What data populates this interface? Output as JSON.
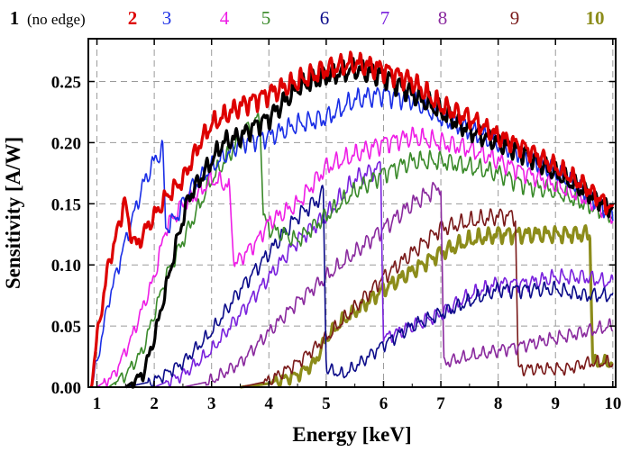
{
  "chart_data": {
    "type": "line",
    "xlabel": "Energy [keV]",
    "ylabel": "Sensitivity [A/W]",
    "xlim": [
      0.85,
      10.05
    ],
    "ylim": [
      0.0,
      0.285
    ],
    "x_ticks": [
      "1",
      "2",
      "3",
      "4",
      "5",
      "6",
      "7",
      "8",
      "9",
      "10"
    ],
    "y_ticks": [
      "0.00",
      "0.05",
      "0.10",
      "0.15",
      "0.20",
      "0.25"
    ],
    "grid": true,
    "legend_placement": "top",
    "series": [
      {
        "name": "1",
        "note": "(no edge)",
        "color": "#000000",
        "bold": true,
        "width": 3.2,
        "x": [
          1.5,
          1.8,
          2.0,
          2.2,
          2.4,
          2.6,
          2.8,
          3.0,
          3.2,
          3.5,
          3.8,
          4.0,
          4.5,
          5.0,
          5.5,
          6.0,
          6.5,
          7.0,
          7.5,
          8.0,
          8.5,
          9.0,
          9.5,
          10.0
        ],
        "y": [
          0.0,
          0.01,
          0.04,
          0.08,
          0.12,
          0.155,
          0.17,
          0.185,
          0.2,
          0.205,
          0.215,
          0.22,
          0.245,
          0.255,
          0.26,
          0.255,
          0.24,
          0.225,
          0.21,
          0.2,
          0.19,
          0.175,
          0.16,
          0.145
        ]
      },
      {
        "name": "2",
        "color": "#dd0000",
        "bold": true,
        "width": 3.2,
        "x": [
          0.9,
          1.0,
          1.2,
          1.4,
          1.48,
          1.56,
          1.7,
          1.8,
          2.0,
          2.2,
          2.5,
          2.8,
          3.0,
          3.5,
          4.0,
          4.5,
          5.0,
          5.5,
          6.0,
          6.5,
          7.0,
          7.5,
          8.0,
          8.5,
          9.0,
          9.5,
          10.0
        ],
        "y": [
          0.0,
          0.04,
          0.1,
          0.135,
          0.155,
          0.13,
          0.115,
          0.125,
          0.14,
          0.155,
          0.17,
          0.2,
          0.215,
          0.23,
          0.24,
          0.25,
          0.26,
          0.265,
          0.26,
          0.25,
          0.23,
          0.22,
          0.205,
          0.195,
          0.18,
          0.165,
          0.145
        ]
      },
      {
        "name": "3",
        "color": "#1a2ee6",
        "bold": false,
        "width": 1.6,
        "x": [
          0.9,
          1.0,
          1.2,
          1.5,
          1.8,
          2.0,
          2.15,
          2.2,
          2.4,
          2.6,
          2.8,
          3.0,
          3.5,
          4.0,
          4.5,
          5.0,
          5.5,
          6.0,
          6.5,
          7.0,
          7.5,
          8.0,
          8.5,
          9.0,
          9.5,
          10.0
        ],
        "y": [
          0.0,
          0.02,
          0.07,
          0.12,
          0.165,
          0.185,
          0.195,
          0.13,
          0.14,
          0.16,
          0.17,
          0.18,
          0.2,
          0.205,
          0.215,
          0.22,
          0.235,
          0.24,
          0.235,
          0.22,
          0.21,
          0.2,
          0.19,
          0.175,
          0.16,
          0.14
        ]
      },
      {
        "name": "4",
        "color": "#ee1ee6",
        "bold": false,
        "width": 1.6,
        "x": [
          1.0,
          1.3,
          1.6,
          2.0,
          2.2,
          2.5,
          2.8,
          3.0,
          3.3,
          3.4,
          3.6,
          3.8,
          4.0,
          4.5,
          5.0,
          5.5,
          6.0,
          6.5,
          7.0,
          7.5,
          8.0,
          8.5,
          9.0,
          9.5,
          10.0
        ],
        "y": [
          0.0,
          0.01,
          0.04,
          0.09,
          0.13,
          0.15,
          0.16,
          0.17,
          0.165,
          0.1,
          0.11,
          0.12,
          0.135,
          0.15,
          0.18,
          0.19,
          0.2,
          0.205,
          0.2,
          0.195,
          0.185,
          0.175,
          0.165,
          0.155,
          0.14
        ]
      },
      {
        "name": "5",
        "color": "#3a8a2a",
        "bold": false,
        "width": 1.6,
        "x": [
          1.2,
          1.5,
          1.8,
          2.0,
          2.2,
          2.5,
          2.8,
          3.0,
          3.3,
          3.6,
          3.85,
          3.9,
          4.0,
          4.5,
          5.0,
          5.5,
          6.0,
          6.5,
          7.0,
          7.5,
          8.0,
          8.5,
          9.0,
          9.5,
          10.0
        ],
        "y": [
          0.0,
          0.01,
          0.03,
          0.06,
          0.09,
          0.12,
          0.15,
          0.17,
          0.19,
          0.21,
          0.22,
          0.14,
          0.13,
          0.12,
          0.14,
          0.16,
          0.175,
          0.185,
          0.185,
          0.18,
          0.175,
          0.165,
          0.16,
          0.15,
          0.14
        ]
      },
      {
        "name": "6",
        "color": "#0c0c8a",
        "bold": false,
        "width": 1.6,
        "x": [
          1.5,
          2.0,
          2.5,
          3.0,
          3.5,
          4.0,
          4.5,
          4.9,
          4.95,
          5.0,
          5.3,
          5.6,
          6.0,
          6.5,
          7.0,
          7.5,
          8.0,
          8.5,
          9.0,
          9.5,
          10.0
        ],
        "y": [
          0.0,
          0.005,
          0.02,
          0.045,
          0.08,
          0.11,
          0.14,
          0.155,
          0.16,
          0.015,
          0.01,
          0.02,
          0.035,
          0.05,
          0.06,
          0.07,
          0.08,
          0.08,
          0.08,
          0.075,
          0.075
        ]
      },
      {
        "name": "7",
        "color": "#7a22dd",
        "bold": false,
        "width": 1.6,
        "x": [
          2.0,
          2.5,
          3.0,
          3.5,
          4.0,
          4.5,
          5.0,
          5.5,
          5.95,
          6.0,
          6.5,
          7.0,
          7.5,
          8.0,
          8.5,
          9.0,
          9.5,
          10.0
        ],
        "y": [
          0.0,
          0.01,
          0.03,
          0.06,
          0.09,
          0.12,
          0.14,
          0.17,
          0.18,
          0.04,
          0.05,
          0.06,
          0.075,
          0.085,
          0.085,
          0.09,
          0.09,
          0.085
        ]
      },
      {
        "name": "8",
        "color": "#8a2a9e",
        "bold": false,
        "width": 1.6,
        "x": [
          2.5,
          3.0,
          3.5,
          4.0,
          4.5,
          5.0,
          5.5,
          6.0,
          6.5,
          7.0,
          7.05,
          7.5,
          8.0,
          8.5,
          9.0,
          9.5,
          10.0
        ],
        "y": [
          0.0,
          0.005,
          0.02,
          0.045,
          0.07,
          0.09,
          0.11,
          0.13,
          0.15,
          0.165,
          0.02,
          0.025,
          0.03,
          0.035,
          0.04,
          0.045,
          0.05
        ]
      },
      {
        "name": "9",
        "color": "#7a1a1a",
        "bold": false,
        "width": 1.6,
        "x": [
          3.5,
          4.0,
          4.5,
          5.0,
          5.5,
          6.0,
          6.5,
          7.0,
          7.5,
          8.0,
          8.3,
          8.35,
          8.8,
          9.2,
          9.6,
          10.0
        ],
        "y": [
          0.0,
          0.005,
          0.02,
          0.04,
          0.065,
          0.09,
          0.11,
          0.13,
          0.135,
          0.14,
          0.14,
          0.015,
          0.015,
          0.015,
          0.02,
          0.02
        ]
      },
      {
        "name": "10",
        "color": "#8c8c1a",
        "bold": true,
        "width": 3.2,
        "x": [
          3.5,
          4.0,
          4.5,
          4.8,
          5.0,
          5.3,
          5.6,
          6.0,
          6.5,
          7.0,
          7.5,
          8.0,
          8.5,
          9.0,
          9.5,
          9.6,
          9.65,
          10.0
        ],
        "y": [
          0.0,
          0.003,
          0.01,
          0.02,
          0.04,
          0.055,
          0.065,
          0.08,
          0.095,
          0.11,
          0.12,
          0.125,
          0.125,
          0.125,
          0.125,
          0.125,
          0.02,
          0.02
        ]
      }
    ]
  }
}
